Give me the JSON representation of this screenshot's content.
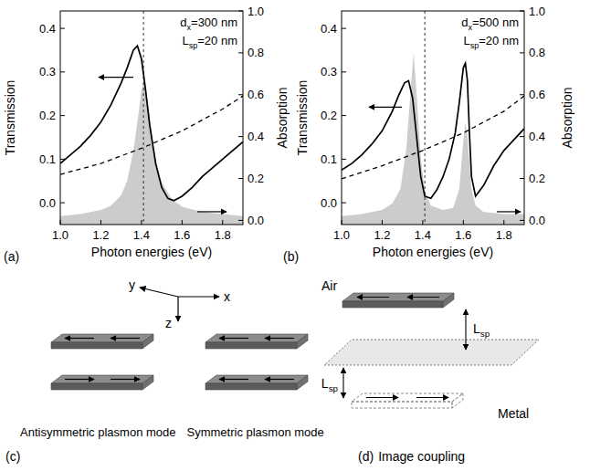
{
  "chart_data": [
    {
      "type": "line",
      "panel": "(a)",
      "x_label": "Photon energies (eV)",
      "y_label": "Transmission",
      "y2_label": "Absorption",
      "xlim": [
        1.0,
        1.9
      ],
      "xticks": [
        {
          "value": 1,
          "label": "1.0"
        },
        1.2,
        1.4,
        1.6,
        1.8
      ],
      "ylim": [
        -0.05,
        0.44
      ],
      "yticks": [
        {
          "value": 0,
          "label": "0.0"
        },
        0.1,
        0.2,
        0.3,
        0.4
      ],
      "y2lim": [
        -0.02,
        1.0
      ],
      "y2ticks": [
        {
          "value": 0,
          "label": "0.0"
        },
        0.2,
        0.4,
        0.6,
        0.8,
        {
          "value": 1,
          "label": "1.0"
        }
      ],
      "vlines": [
        1.41
      ],
      "annotations": [
        {
          "main": "d",
          "sub": "x",
          "rest": "=300 nm"
        },
        {
          "main": "L",
          "sub": "sp",
          "rest": "=20 nm"
        }
      ],
      "series": [
        {
          "type": "line",
          "color": "#000000",
          "line_style": "solid",
          "x": [
            1.0,
            1.05,
            1.1,
            1.15,
            1.2,
            1.25,
            1.3,
            1.33,
            1.36,
            1.38,
            1.4,
            1.42,
            1.44,
            1.47,
            1.5,
            1.53,
            1.56,
            1.6,
            1.65,
            1.7,
            1.8,
            1.9
          ],
          "values": [
            0.09,
            0.11,
            0.13,
            0.155,
            0.185,
            0.225,
            0.275,
            0.31,
            0.35,
            0.36,
            0.33,
            0.26,
            0.18,
            0.09,
            0.035,
            0.01,
            0.005,
            0.015,
            0.035,
            0.06,
            0.1,
            0.14
          ]
        },
        {
          "type": "area",
          "axis": "y2",
          "color": "#cccccc",
          "x": [
            1.0,
            1.1,
            1.2,
            1.25,
            1.3,
            1.33,
            1.36,
            1.38,
            1.4,
            1.41,
            1.42,
            1.44,
            1.46,
            1.48,
            1.5,
            1.55,
            1.6,
            1.7,
            1.8,
            1.9
          ],
          "values": [
            0.02,
            0.03,
            0.05,
            0.07,
            0.12,
            0.19,
            0.33,
            0.47,
            0.62,
            0.66,
            0.64,
            0.5,
            0.35,
            0.25,
            0.18,
            0.1,
            0.065,
            0.04,
            0.03,
            0.02
          ]
        },
        {
          "type": "line",
          "color": "#000000",
          "line_style": "dashed",
          "x": [
            1.0,
            1.2,
            1.4,
            1.6,
            1.8,
            1.9
          ],
          "values": [
            0.065,
            0.09,
            0.125,
            0.165,
            0.215,
            0.245
          ]
        }
      ]
    },
    {
      "type": "line",
      "panel": "(b)",
      "x_label": "Photon energies (eV)",
      "y_label": "Transmission",
      "y2_label": "Absorption",
      "xlim": [
        1.0,
        1.9
      ],
      "xticks": [
        {
          "value": 1,
          "label": "1.0"
        },
        1.2,
        1.4,
        1.6,
        1.8
      ],
      "ylim": [
        -0.05,
        0.44
      ],
      "yticks": [
        {
          "value": 0,
          "label": "0.0"
        },
        0.1,
        0.2,
        0.3,
        0.4
      ],
      "y2lim": [
        -0.02,
        1.0
      ],
      "y2ticks": [
        {
          "value": 0,
          "label": "0.0"
        },
        0.2,
        0.4,
        0.6,
        0.8,
        {
          "value": 1,
          "label": "1.0"
        }
      ],
      "vlines": [
        1.41
      ],
      "annotations": [
        {
          "main": "d",
          "sub": "x",
          "rest": "=500 nm"
        },
        {
          "main": "L",
          "sub": "sp",
          "rest": "=20 nm"
        }
      ],
      "series": [
        {
          "type": "line",
          "color": "#000000",
          "line_style": "solid",
          "x": [
            1.0,
            1.05,
            1.1,
            1.15,
            1.2,
            1.25,
            1.28,
            1.31,
            1.33,
            1.35,
            1.37,
            1.39,
            1.41,
            1.44,
            1.47,
            1.5,
            1.53,
            1.56,
            1.58,
            1.6,
            1.61,
            1.62,
            1.63,
            1.64,
            1.66,
            1.7,
            1.75,
            1.8,
            1.85,
            1.9
          ],
          "values": [
            0.075,
            0.09,
            0.11,
            0.135,
            0.165,
            0.21,
            0.245,
            0.275,
            0.28,
            0.24,
            0.15,
            0.06,
            0.015,
            0.01,
            0.03,
            0.06,
            0.1,
            0.16,
            0.23,
            0.31,
            0.32,
            0.28,
            0.16,
            0.06,
            0.015,
            0.04,
            0.085,
            0.12,
            0.145,
            0.17
          ]
        },
        {
          "type": "area",
          "axis": "y2",
          "color": "#cccccc",
          "x": [
            1.0,
            1.1,
            1.2,
            1.25,
            1.29,
            1.32,
            1.34,
            1.355,
            1.37,
            1.39,
            1.41,
            1.44,
            1.5,
            1.55,
            1.58,
            1.6,
            1.61,
            1.62,
            1.64,
            1.66,
            1.7,
            1.8,
            1.9
          ],
          "values": [
            0.02,
            0.03,
            0.05,
            0.08,
            0.15,
            0.35,
            0.62,
            0.8,
            0.6,
            0.3,
            0.14,
            0.07,
            0.05,
            0.06,
            0.15,
            0.38,
            0.47,
            0.4,
            0.15,
            0.07,
            0.04,
            0.03,
            0.03
          ]
        },
        {
          "type": "line",
          "color": "#000000",
          "line_style": "dashed",
          "x": [
            1.0,
            1.2,
            1.4,
            1.6,
            1.8,
            1.9
          ],
          "values": [
            0.055,
            0.085,
            0.12,
            0.16,
            0.21,
            0.245
          ]
        }
      ]
    }
  ],
  "diagram": {
    "panel_c": {
      "label": "(c)",
      "axes": [
        "y",
        "x",
        "z"
      ],
      "modes": [
        "Antisymmetric plasmon mode",
        "Symmetric plasmon mode"
      ]
    },
    "panel_d": {
      "label": "(d)",
      "title": "Image coupling",
      "media": [
        "Air",
        "Metal"
      ],
      "gap": {
        "main": "L",
        "sub": "sp"
      }
    }
  }
}
